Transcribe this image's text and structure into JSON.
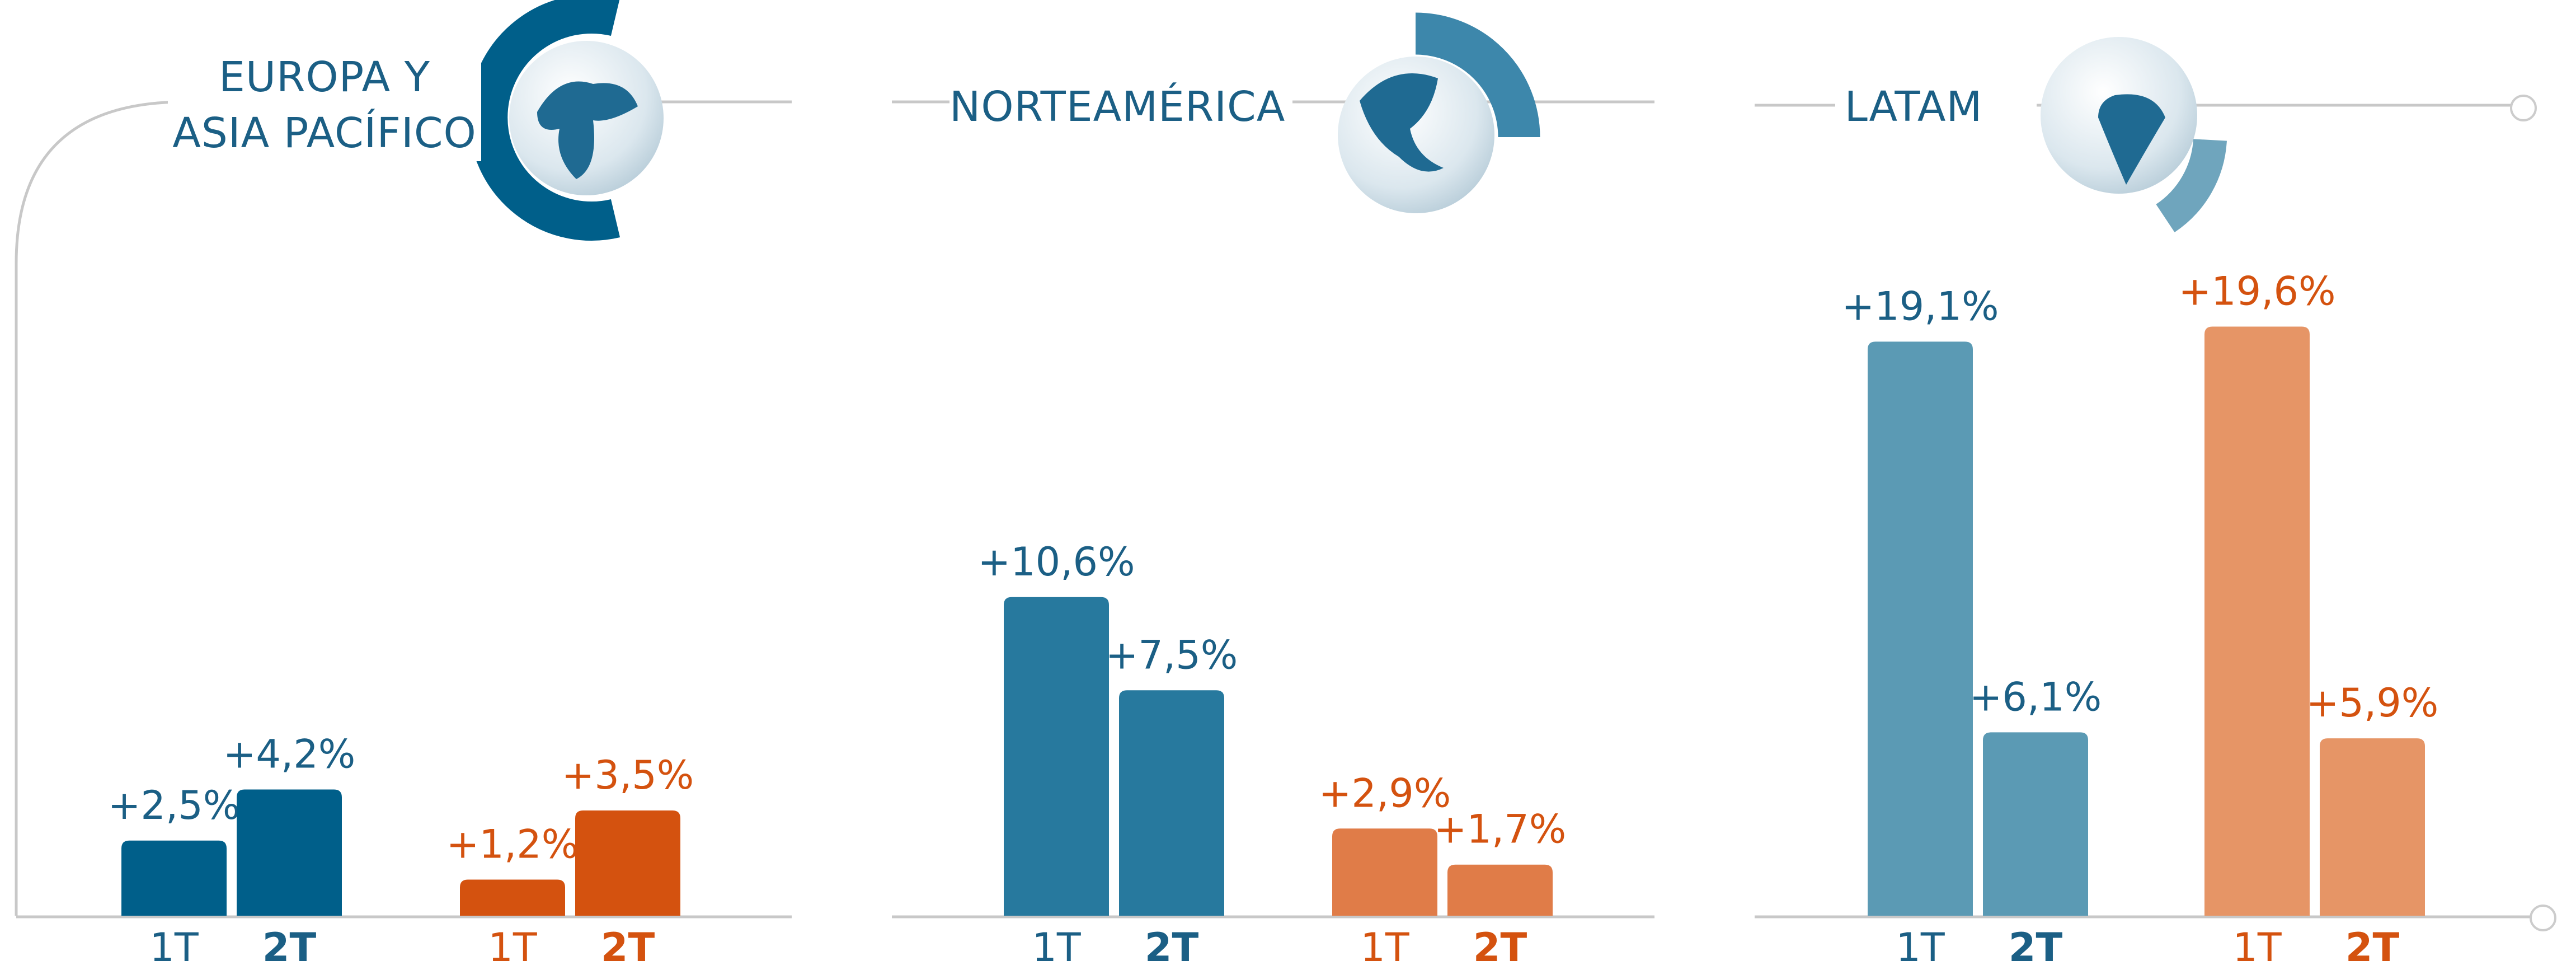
{
  "chart_data": [
    {
      "type": "bar",
      "title": "EUROPA Y ASIA PACÍFICO",
      "categories": [
        "1T",
        "2T"
      ],
      "series": [
        {
          "color": "#005f8a",
          "values": [
            2.5,
            4.2
          ],
          "value_labels": [
            "+2,5%",
            "+4,2%"
          ]
        },
        {
          "color": "#d4520f",
          "values": [
            1.2,
            3.5
          ],
          "value_labels": [
            "+1,2%",
            "+3,5%"
          ]
        }
      ]
    },
    {
      "type": "bar",
      "title": "NORTEAMÉRICA",
      "categories": [
        "1T",
        "2T"
      ],
      "series": [
        {
          "color": "#27799e",
          "values": [
            10.6,
            7.5
          ],
          "value_labels": [
            "+10,6%",
            "+7,5%"
          ]
        },
        {
          "color": "#e07c48",
          "values": [
            2.9,
            1.7
          ],
          "value_labels": [
            "+2,9%",
            "+1,7%"
          ]
        }
      ]
    },
    {
      "type": "bar",
      "title": "LATAM",
      "categories": [
        "1T",
        "2T"
      ],
      "series": [
        {
          "color": "#5b9ab4",
          "values": [
            19.1,
            6.1
          ],
          "value_labels": [
            "+19,1%",
            "+6,1%"
          ]
        },
        {
          "color": "#e69566",
          "values": [
            19.6,
            5.9
          ],
          "value_labels": [
            "+19,6%",
            "+5,9%"
          ]
        }
      ]
    }
  ]
}
